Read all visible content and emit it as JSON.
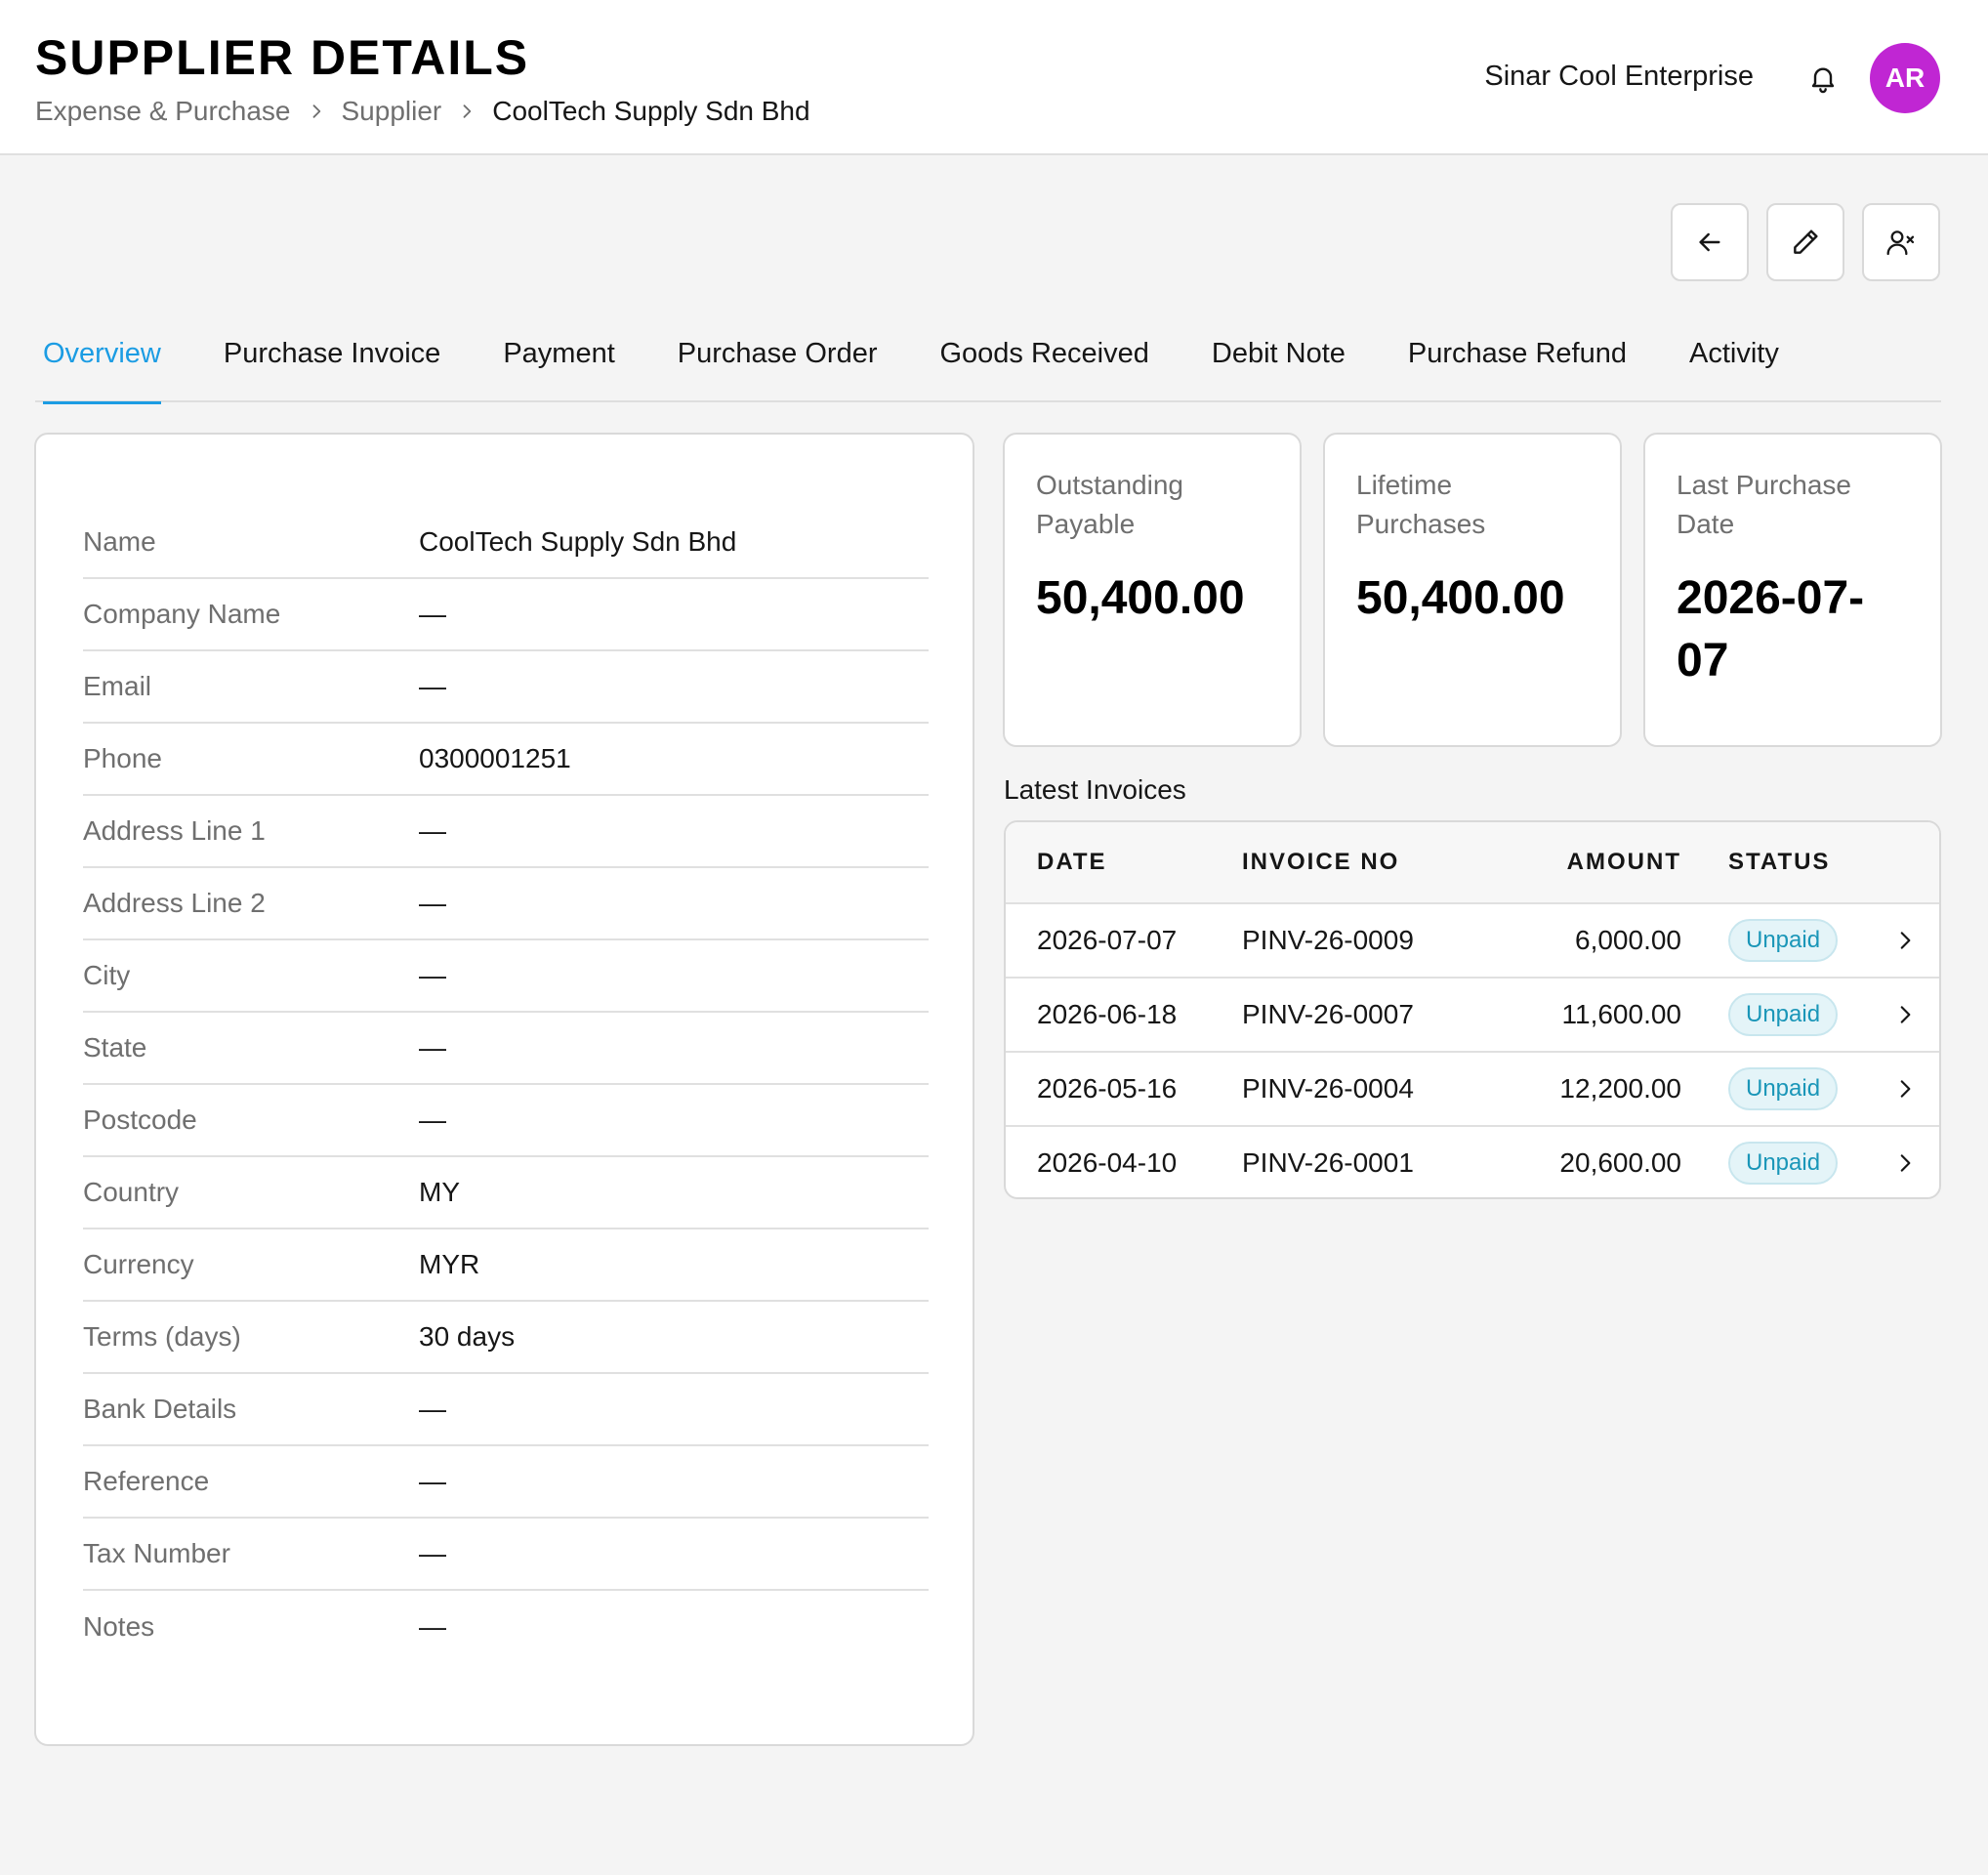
{
  "header": {
    "title": "SUPPLIER DETAILS",
    "breadcrumb": [
      "Expense & Purchase",
      "Supplier",
      "CoolTech Supply Sdn Bhd"
    ],
    "company": "Sinar Cool Enterprise",
    "avatar_initials": "AR",
    "avatar_color": "#c026d3"
  },
  "actions": {
    "icons": [
      "arrow-left-icon",
      "pencil-icon",
      "user-remove-icon"
    ]
  },
  "tabs": [
    {
      "label": "Overview",
      "active": true
    },
    {
      "label": "Purchase Invoice",
      "active": false
    },
    {
      "label": "Payment",
      "active": false
    },
    {
      "label": "Purchase Order",
      "active": false
    },
    {
      "label": "Goods Received",
      "active": false
    },
    {
      "label": "Debit Note",
      "active": false
    },
    {
      "label": "Purchase Refund",
      "active": false
    },
    {
      "label": "Activity",
      "active": false
    }
  ],
  "details": [
    {
      "label": "Name",
      "value": "CoolTech Supply Sdn Bhd"
    },
    {
      "label": "Company Name",
      "value": "—"
    },
    {
      "label": "Email",
      "value": "—"
    },
    {
      "label": "Phone",
      "value": "0300001251"
    },
    {
      "label": "Address Line 1",
      "value": "—"
    },
    {
      "label": "Address Line 2",
      "value": "—"
    },
    {
      "label": "City",
      "value": "—"
    },
    {
      "label": "State",
      "value": "—"
    },
    {
      "label": "Postcode",
      "value": "—"
    },
    {
      "label": "Country",
      "value": "MY"
    },
    {
      "label": "Currency",
      "value": "MYR"
    },
    {
      "label": "Terms (days)",
      "value": "30 days"
    },
    {
      "label": "Bank Details",
      "value": "—"
    },
    {
      "label": "Reference",
      "value": "—"
    },
    {
      "label": "Tax Number",
      "value": "—"
    },
    {
      "label": "Notes",
      "value": "—"
    }
  ],
  "stats": {
    "outstanding": {
      "label_line1": "Outstanding",
      "label_line2": "Payable",
      "value": "50,400.00"
    },
    "lifetime": {
      "label": "Lifetime Purchases",
      "value": "50,400.00"
    },
    "last_purchase": {
      "label_line1": "Last Purchase",
      "label_line2": "Date",
      "value_line1": "2026-07-",
      "value_line2": "07"
    }
  },
  "invoices": {
    "title": "Latest Invoices",
    "columns": {
      "date": "DATE",
      "invoice_no": "INVOICE NO",
      "amount": "AMOUNT",
      "status": "STATUS"
    },
    "rows": [
      {
        "date": "2026-07-07",
        "invoice_no": "PINV-26-0009",
        "amount": "6,000.00",
        "status": "Unpaid"
      },
      {
        "date": "2026-06-18",
        "invoice_no": "PINV-26-0007",
        "amount": "11,600.00",
        "status": "Unpaid"
      },
      {
        "date": "2026-05-16",
        "invoice_no": "PINV-26-0004",
        "amount": "12,200.00",
        "status": "Unpaid"
      },
      {
        "date": "2026-04-10",
        "invoice_no": "PINV-26-0001",
        "amount": "20,600.00",
        "status": "Unpaid"
      }
    ]
  },
  "colors": {
    "accent": "#1b9ce3",
    "badge_text": "#1a96b8",
    "badge_bg": "#e4f4f8"
  }
}
